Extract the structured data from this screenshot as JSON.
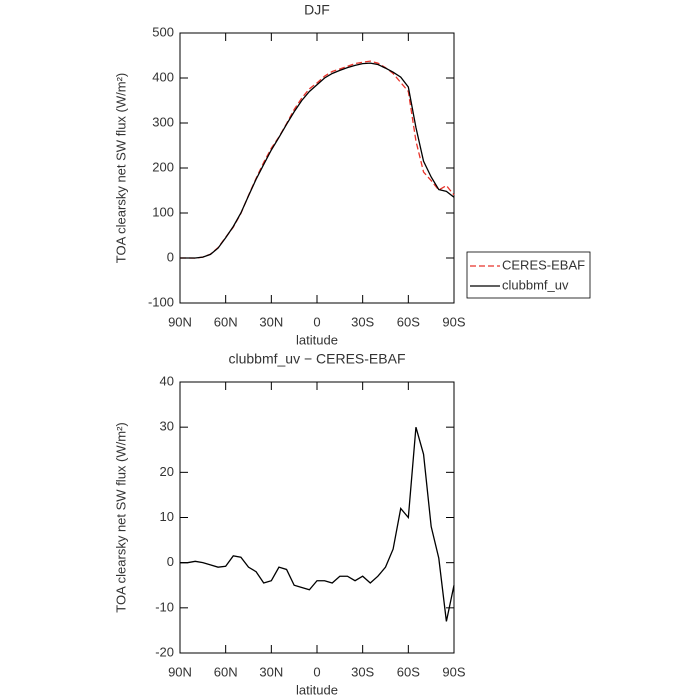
{
  "chart_data": [
    {
      "type": "line",
      "title": "DJF",
      "xlabel": "latitude",
      "ylabel": "TOA clearsky net SW flux (W/m²)",
      "x": [
        90,
        85,
        80,
        75,
        70,
        65,
        60,
        55,
        50,
        45,
        40,
        35,
        30,
        25,
        20,
        15,
        10,
        5,
        0,
        -5,
        -10,
        -15,
        -20,
        -25,
        -30,
        -35,
        -40,
        -45,
        -50,
        -55,
        -60,
        -65,
        -70,
        -75,
        -80,
        -85,
        -90
      ],
      "series": [
        {
          "name": "CERES-EBAF",
          "color": "#e8332a",
          "dash": true,
          "values": [
            0,
            0,
            -0.3,
            2,
            8.5,
            23,
            46,
            68.5,
            99,
            139,
            177,
            212.5,
            244,
            269,
            298.5,
            330,
            355.5,
            376,
            389,
            404,
            414.5,
            420,
            426,
            432,
            435,
            437.5,
            433,
            423,
            410,
            390,
            370,
            260,
            191,
            172,
            151,
            161,
            140
          ]
        },
        {
          "name": "clubbmf_uv",
          "color": "#000000",
          "dash": false,
          "values": [
            0,
            0,
            0,
            2,
            8,
            22,
            45,
            70,
            100,
            138,
            175,
            208,
            240,
            268,
            297,
            325,
            350,
            370,
            385,
            400,
            410,
            417,
            423,
            428,
            432,
            433,
            430,
            422,
            413,
            402,
            380,
            290,
            215,
            180,
            152,
            148,
            135
          ]
        }
      ],
      "xlim": [
        90,
        -90
      ],
      "xticks": [
        {
          "value": 90,
          "label": "90N"
        },
        {
          "value": 60,
          "label": "60N"
        },
        {
          "value": 30,
          "label": "30N"
        },
        0,
        {
          "value": -30,
          "label": "30S"
        },
        {
          "value": -60,
          "label": "60S"
        },
        {
          "value": -90,
          "label": "90S"
        }
      ],
      "ylim": [
        -100,
        500
      ],
      "yticks": [
        -100,
        0,
        100,
        200,
        300,
        400,
        500
      ],
      "legend": "right"
    },
    {
      "type": "line",
      "title": "clubbmf_uv − CERES-EBAF",
      "xlabel": "latitude",
      "ylabel": "TOA clearsky net SW flux (W/m²)",
      "x": [
        90,
        85,
        80,
        75,
        70,
        65,
        60,
        55,
        50,
        45,
        40,
        35,
        30,
        25,
        20,
        15,
        10,
        5,
        0,
        -5,
        -10,
        -15,
        -20,
        -25,
        -30,
        -35,
        -40,
        -45,
        -50,
        -55,
        -60,
        -65,
        -70,
        -75,
        -80,
        -85,
        -90
      ],
      "series": [
        {
          "color": "#000000",
          "values": [
            0,
            0,
            0.3,
            0,
            -0.5,
            -1,
            -0.8,
            1.5,
            1.2,
            -1,
            -2,
            -4.5,
            -4,
            -1,
            -1.5,
            -5,
            -5.5,
            -6,
            -4,
            -4,
            -4.5,
            -3,
            -3,
            -4,
            -3,
            -4.5,
            -3,
            -1,
            3,
            12,
            10,
            30,
            24,
            8,
            1,
            -13,
            -5
          ]
        }
      ],
      "xlim": [
        90,
        -90
      ],
      "xticks": [
        {
          "value": 90,
          "label": "90N"
        },
        {
          "value": 60,
          "label": "60N"
        },
        {
          "value": 30,
          "label": "30N"
        },
        0,
        {
          "value": -30,
          "label": "30S"
        },
        {
          "value": -60,
          "label": "60S"
        },
        {
          "value": -90,
          "label": "90S"
        }
      ],
      "ylim": [
        -20,
        40
      ],
      "yticks": [
        -20,
        -10,
        0,
        10,
        20,
        30,
        40
      ]
    }
  ]
}
